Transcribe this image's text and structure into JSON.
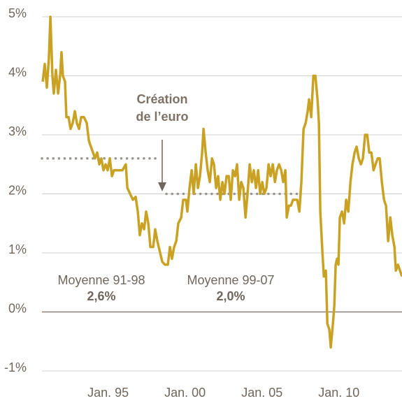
{
  "chart_data": {
    "type": "line",
    "color": "#c9a224",
    "xlim": [
      1990.7,
      2014.1
    ],
    "ylim": [
      -1,
      5
    ],
    "xticks": [
      {
        "value": 1995,
        "label": "Jan. 95"
      },
      {
        "value": 2000,
        "label": "Jan. 00"
      },
      {
        "value": 2005,
        "label": "Jan. 05"
      },
      {
        "value": 2010,
        "label": "Jan. 10"
      }
    ],
    "yticks": [
      {
        "value": 5,
        "label": "5%"
      },
      {
        "value": 4,
        "label": "4%"
      },
      {
        "value": 3,
        "label": "3%"
      },
      {
        "value": 2,
        "label": "2%"
      },
      {
        "value": 1,
        "label": "1%"
      },
      {
        "value": 0,
        "label": "0%"
      },
      {
        "value": -1,
        "label": "-1%"
      }
    ],
    "grid": true,
    "annotation": [
      "Création",
      "de l’euro"
    ],
    "reference_lines": [
      {
        "label": "Moyenne 91-98",
        "value": 2.6,
        "value_label": "2,6%",
        "x": [
          1990.7,
          1998.34
        ]
      },
      {
        "label": "Moyenne 99-07",
        "value": 2.0,
        "value_label": "2,0%",
        "x": [
          1998.79,
          2007.29
        ]
      }
    ],
    "x": [
      1990.75,
      1990.88,
      1991.02,
      1991.15,
      1991.25,
      1991.38,
      1991.47,
      1991.61,
      1991.75,
      1991.88,
      1991.97,
      1992.06,
      1992.2,
      1992.29,
      1992.43,
      1992.56,
      1992.7,
      1992.84,
      1992.97,
      1993.11,
      1993.25,
      1993.43,
      1993.61,
      1993.75,
      1993.88,
      1994.02,
      1994.15,
      1994.29,
      1994.43,
      1994.56,
      1994.7,
      1994.84,
      1994.97,
      1995.11,
      1995.25,
      1995.38,
      1995.61,
      1995.93,
      1996.15,
      1996.25,
      1996.43,
      1996.61,
      1996.79,
      1996.93,
      1997.06,
      1997.2,
      1997.34,
      1997.47,
      1997.61,
      1997.75,
      1997.93,
      1998.06,
      1998.2,
      1998.38,
      1998.52,
      1998.7,
      1998.88,
      1999.02,
      1999.15,
      1999.29,
      1999.43,
      1999.56,
      1999.75,
      1999.88,
      2000.06,
      2000.15,
      2000.29,
      2000.43,
      2000.56,
      2000.7,
      2000.84,
      2000.97,
      2001.11,
      2001.2,
      2001.34,
      2001.47,
      2001.61,
      2001.75,
      2001.88,
      2002.02,
      2002.15,
      2002.29,
      2002.43,
      2002.56,
      2002.7,
      2002.84,
      2002.97,
      2003.11,
      2003.25,
      2003.38,
      2003.52,
      2003.65,
      2003.79,
      2003.93,
      2004.06,
      2004.2,
      2004.34,
      2004.47,
      2004.61,
      2004.75,
      2004.88,
      2005.02,
      2005.15,
      2005.29,
      2005.43,
      2005.56,
      2005.7,
      2005.84,
      2005.97,
      2006.11,
      2006.25,
      2006.38,
      2006.52,
      2006.61,
      2006.75,
      2006.88,
      2007.02,
      2007.15,
      2007.29,
      2007.43,
      2007.56,
      2007.7,
      2007.84,
      2007.97,
      2008.06,
      2008.2,
      2008.34,
      2008.47,
      2008.61,
      2008.7,
      2008.79,
      2008.93,
      2009.02,
      2009.15,
      2009.25,
      2009.38,
      2009.47,
      2009.61,
      2009.7,
      2009.79,
      2009.88,
      2009.97,
      2010.06,
      2010.2,
      2010.34,
      2010.47,
      2010.61,
      2010.75,
      2010.88,
      2011.02,
      2011.15,
      2011.29,
      2011.43,
      2011.56,
      2011.7,
      2011.84,
      2011.97,
      2012.11,
      2012.25,
      2012.38,
      2012.52,
      2012.65,
      2012.79,
      2012.93,
      2013.06,
      2013.2,
      2013.34,
      2013.47,
      2013.61,
      2013.7,
      2013.84,
      2013.97,
      2014.1
    ],
    "values": [
      3.9,
      4.2,
      3.8,
      4.3,
      5.0,
      4.0,
      3.7,
      4.1,
      3.7,
      4.0,
      4.4,
      4.0,
      3.9,
      3.3,
      3.3,
      3.1,
      3.2,
      3.4,
      3.2,
      3.1,
      3.3,
      3.3,
      3.2,
      2.9,
      2.8,
      2.7,
      2.6,
      2.7,
      2.5,
      2.6,
      2.4,
      2.5,
      2.4,
      2.6,
      2.3,
      2.4,
      2.4,
      2.4,
      2.5,
      2.1,
      2.0,
      1.9,
      1.95,
      1.7,
      1.3,
      1.5,
      1.4,
      1.7,
      1.5,
      1.1,
      1.1,
      1.4,
      1.2,
      1.0,
      0.85,
      0.8,
      0.8,
      1.1,
      0.9,
      1.1,
      1.2,
      1.5,
      1.6,
      1.9,
      1.9,
      1.7,
      2.1,
      2.4,
      2.0,
      2.5,
      2.1,
      2.3,
      2.7,
      3.1,
      2.7,
      2.4,
      2.2,
      2.6,
      2.5,
      2.1,
      2.3,
      1.9,
      2.2,
      2.0,
      2.3,
      2.3,
      1.9,
      2.4,
      2.3,
      2.5,
      1.9,
      2.2,
      2.1,
      1.6,
      2.0,
      2.5,
      2.2,
      2.4,
      2.1,
      2.4,
      2.0,
      2.2,
      2.0,
      2.1,
      2.5,
      2.3,
      2.5,
      2.2,
      2.4,
      2.5,
      2.4,
      2.2,
      2.4,
      1.6,
      1.8,
      1.8,
      1.9,
      1.9,
      1.9,
      1.7,
      2.2,
      3.1,
      3.2,
      3.4,
      3.6,
      3.3,
      4.0,
      4.0,
      3.6,
      3.2,
      1.7,
      1.0,
      0.6,
      0.7,
      -0.2,
      -0.3,
      -0.6,
      -0.2,
      0.1,
      0.8,
      0.9,
      0.8,
      1.6,
      1.7,
      1.5,
      1.9,
      1.7,
      2.2,
      2.5,
      2.7,
      2.8,
      2.6,
      2.5,
      2.6,
      3.0,
      3.0,
      2.7,
      2.7,
      2.4,
      2.5,
      2.6,
      2.6,
      2.2,
      1.9,
      1.8,
      1.2,
      1.6,
      1.3,
      1.1,
      0.7,
      0.8,
      0.7,
      0.6
    ]
  }
}
